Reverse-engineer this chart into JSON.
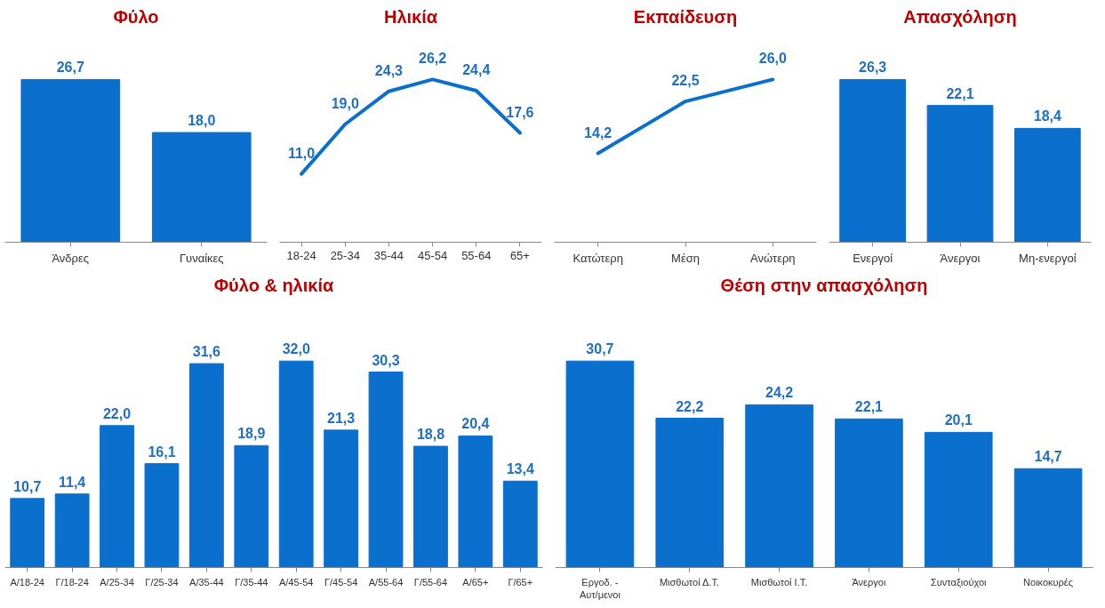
{
  "chart_data": [
    {
      "type": "bar",
      "title": "Φύλο",
      "categories": [
        "Άνδρες",
        "Γυναίκες"
      ],
      "values": [
        26.7,
        18.0
      ],
      "value_labels": [
        "26,7",
        "18,0"
      ],
      "color": "#0b6fcd",
      "grid": false
    },
    {
      "type": "line",
      "title": "Ηλικία",
      "categories": [
        "18-24",
        "25-34",
        "35-44",
        "45-54",
        "55-64",
        "65+"
      ],
      "values": [
        11.0,
        19.0,
        24.3,
        26.2,
        24.4,
        17.6
      ],
      "value_labels": [
        "11,0",
        "19,0",
        "24,3",
        "26,2",
        "24,4",
        "17,6"
      ],
      "color": "#0b6fcd",
      "marker": "none",
      "line_style": "solid",
      "grid": false
    },
    {
      "type": "line",
      "title": "Εκπαίδευση",
      "categories": [
        "Κατώτερη",
        "Μέση",
        "Ανώτερη"
      ],
      "values": [
        14.2,
        22.5,
        26.0
      ],
      "value_labels": [
        "14,2",
        "22,5",
        "26,0"
      ],
      "color": "#0b6fcd",
      "marker": "none",
      "line_style": "solid",
      "grid": false
    },
    {
      "type": "bar",
      "title": "Απασχόληση",
      "categories": [
        "Ενεργοί",
        "Άνεργοι",
        "Μη-ενεργοί"
      ],
      "values": [
        26.3,
        22.1,
        18.4
      ],
      "value_labels": [
        "26,3",
        "22,1",
        "18,4"
      ],
      "color": "#0b6fcd",
      "grid": false
    },
    {
      "type": "bar",
      "title": "Φύλο & ηλικία",
      "categories": [
        "Α/18-24",
        "Γ/18-24",
        "Α/25-34",
        "Γ/25-34",
        "Α/35-44",
        "Γ/35-44",
        "Α/45-54",
        "Γ/45-54",
        "Α/55-64",
        "Γ/55-64",
        "Α/65+",
        "Γ/65+"
      ],
      "values": [
        10.7,
        11.4,
        22.0,
        16.1,
        31.6,
        18.9,
        32.0,
        21.3,
        30.3,
        18.8,
        20.4,
        13.4
      ],
      "value_labels": [
        "10,7",
        "11,4",
        "22,0",
        "16,1",
        "31,6",
        "18,9",
        "32,0",
        "21,3",
        "30,3",
        "18,8",
        "20,4",
        "13,4"
      ],
      "color": "#0b6fcd",
      "grid": false
    },
    {
      "type": "bar",
      "title": "Θέση στην απασχόληση",
      "categories": [
        "Εργοδ. -\nΑυτ/μενοι",
        "Μισθωτοί Δ.Τ.",
        "Μισθωτοί Ι.Τ.",
        "Άνεργοι",
        "Συνταξιούχοι",
        "Νοικοκυρές"
      ],
      "values": [
        30.7,
        22.2,
        24.2,
        22.1,
        20.1,
        14.7
      ],
      "value_labels": [
        "30,7",
        "22,2",
        "24,2",
        "22,1",
        "20,1",
        "14,7"
      ],
      "color": "#0b6fcd",
      "grid": false
    }
  ]
}
